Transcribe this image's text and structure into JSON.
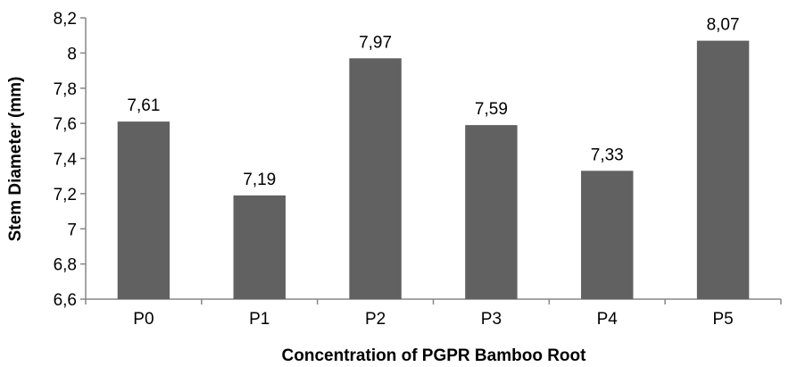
{
  "chart_data": {
    "type": "bar",
    "categories": [
      "P0",
      "P1",
      "P2",
      "P3",
      "P4",
      "P5"
    ],
    "values": [
      7.61,
      7.19,
      7.97,
      7.59,
      7.33,
      8.07
    ],
    "data_labels": [
      "7,61",
      "7,19",
      "7,97",
      "7,59",
      "7,33",
      "8,07"
    ],
    "xlabel": "Concentration of PGPR Bamboo Root",
    "ylabel": "Stem Diameter (mm)",
    "ylim": [
      6.6,
      8.2
    ],
    "yticks": [
      6.6,
      6.8,
      7.0,
      7.2,
      7.4,
      7.6,
      7.8,
      8.0,
      8.2
    ],
    "ytick_labels": [
      "6,6",
      "6,8",
      "7",
      "7,2",
      "7,4",
      "7,6",
      "7,8",
      "8",
      "8,2"
    ],
    "grid": false,
    "legend": "none",
    "bar_color": "#616161",
    "axis_color": "#878787"
  }
}
